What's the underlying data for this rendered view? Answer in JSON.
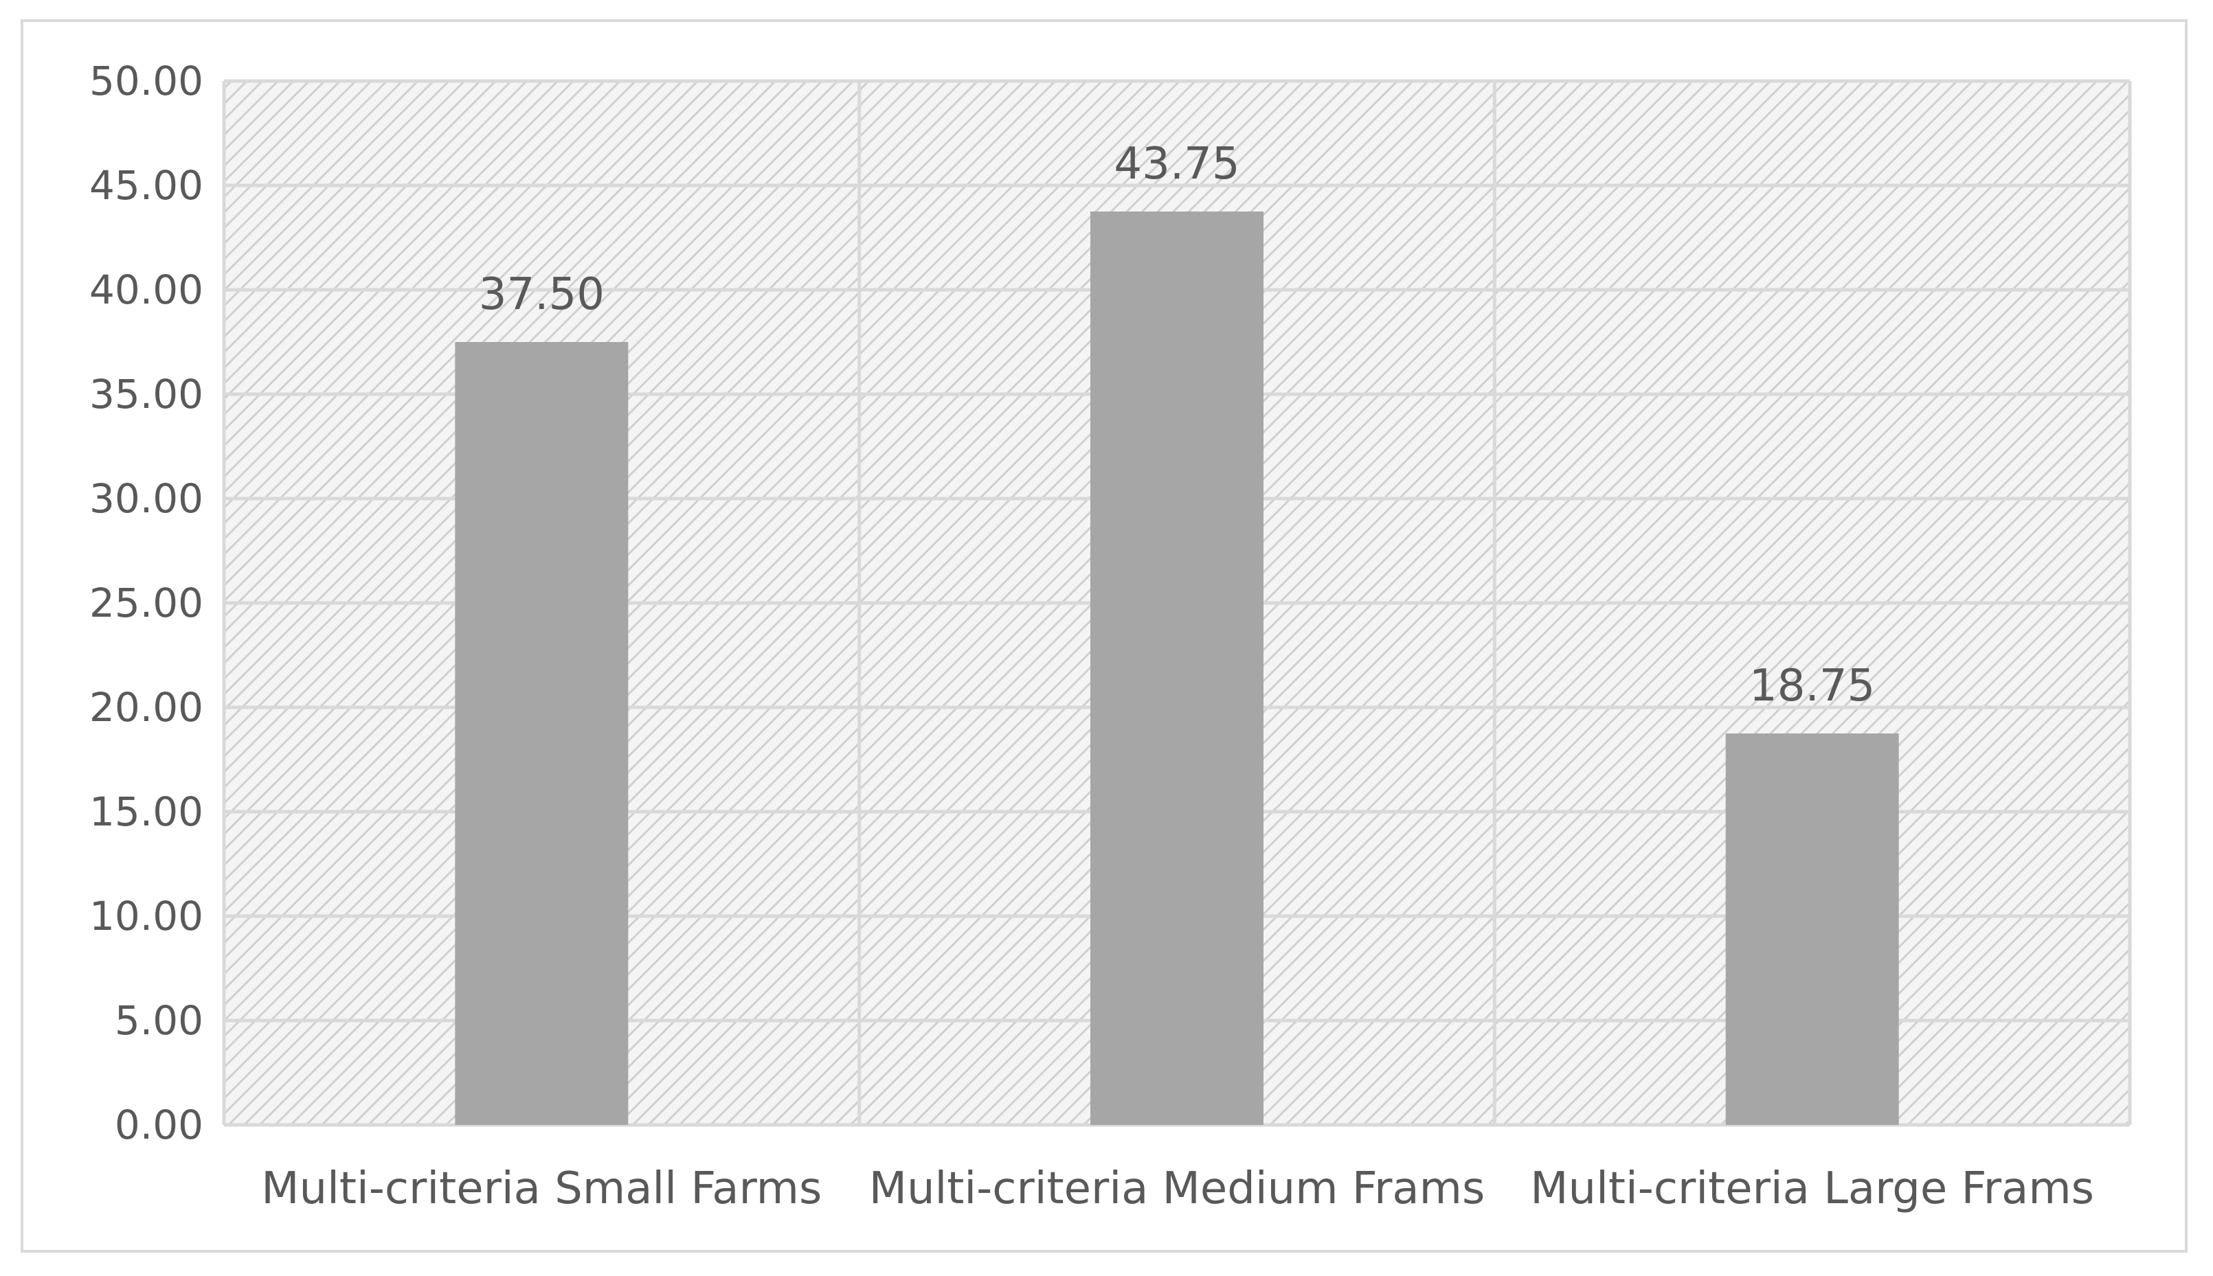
{
  "chart_data": {
    "type": "bar",
    "categories": [
      "Multi-criteria Small Farms",
      "Multi-criteria Medium Frams",
      "Multi-criteria Large Frams"
    ],
    "values": [
      37.5,
      43.75,
      18.75
    ],
    "data_labels": [
      "37.50",
      "43.75",
      "18.75"
    ],
    "y_ticks": [
      "0.00",
      "5.00",
      "10.00",
      "15.00",
      "20.00",
      "25.00",
      "30.00",
      "35.00",
      "40.00",
      "45.00",
      "50.00"
    ],
    "ylim": [
      0,
      50
    ],
    "y_step": 5,
    "title": "",
    "xlabel": "",
    "ylabel": "",
    "grid": true,
    "legend": "none",
    "colors": {
      "bar": "#a6a6a6",
      "plot_background": "#f2f2f2",
      "hatch": "#d0d0d0",
      "gridline": "#d9d9d9",
      "text": "#595959"
    }
  }
}
